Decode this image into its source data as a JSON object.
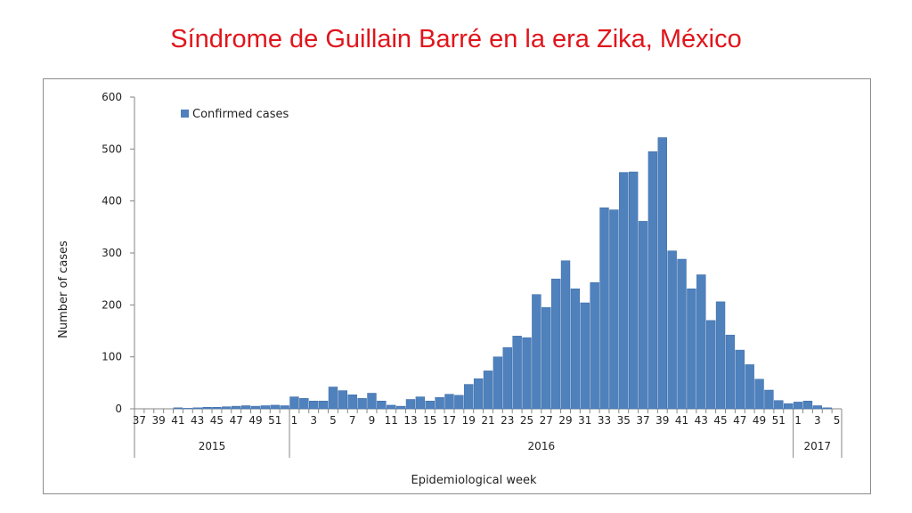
{
  "slide": {
    "title": "Síndrome de Guillain Barré en la era Zika, México"
  },
  "chart_data": {
    "type": "bar",
    "title": "",
    "xlabel": "Epidemiological week",
    "ylabel": "Number of cases",
    "ylim": [
      0,
      600
    ],
    "yticks": [
      0,
      100,
      200,
      300,
      400,
      500,
      600
    ],
    "grid": false,
    "legend": {
      "placement": "top-left",
      "entries": [
        "Confirmed cases"
      ]
    },
    "colors": {
      "bar": "#4f81bd",
      "bar_edge": "#3a6aa6",
      "axis": "#868686"
    },
    "years": [
      {
        "label": "2015",
        "weeks": 16
      },
      {
        "label": "2016",
        "weeks": 52
      },
      {
        "label": "2017",
        "weeks": 5
      }
    ],
    "categories": [
      "37",
      "38",
      "39",
      "40",
      "41",
      "42",
      "43",
      "44",
      "45",
      "46",
      "47",
      "48",
      "49",
      "50",
      "51",
      "52",
      "1",
      "2",
      "3",
      "4",
      "5",
      "6",
      "7",
      "8",
      "9",
      "10",
      "11",
      "12",
      "13",
      "14",
      "15",
      "16",
      "17",
      "18",
      "19",
      "20",
      "21",
      "22",
      "23",
      "24",
      "25",
      "26",
      "27",
      "28",
      "29",
      "30",
      "31",
      "32",
      "33",
      "34",
      "35",
      "36",
      "37",
      "38",
      "39",
      "40",
      "41",
      "42",
      "43",
      "44",
      "45",
      "46",
      "47",
      "48",
      "49",
      "50",
      "51",
      "52",
      "1",
      "2",
      "3",
      "4",
      "5"
    ],
    "tick_labels": [
      "37",
      "39",
      "41",
      "43",
      "45",
      "47",
      "49",
      "51",
      "1",
      "3",
      "5",
      "7",
      "9",
      "11",
      "13",
      "15",
      "17",
      "19",
      "21",
      "23",
      "25",
      "27",
      "29",
      "31",
      "33",
      "35",
      "37",
      "39",
      "41",
      "43",
      "45",
      "47",
      "49",
      "51",
      "1",
      "3",
      "5"
    ],
    "series": [
      {
        "name": "Confirmed cases",
        "values": [
          0,
          0,
          0,
          0,
          2,
          1,
          2,
          3,
          3,
          4,
          5,
          6,
          5,
          6,
          7,
          6,
          23,
          20,
          15,
          15,
          42,
          35,
          27,
          20,
          30,
          15,
          7,
          5,
          18,
          23,
          15,
          22,
          28,
          26,
          47,
          58,
          73,
          100,
          118,
          140,
          137,
          220,
          195,
          250,
          285,
          231,
          204,
          243,
          387,
          383,
          455,
          456,
          361,
          495,
          522,
          304,
          288,
          231,
          258,
          170,
          206,
          142,
          113,
          85,
          57,
          36,
          16,
          10,
          13,
          15,
          6,
          2,
          0
        ]
      }
    ]
  }
}
